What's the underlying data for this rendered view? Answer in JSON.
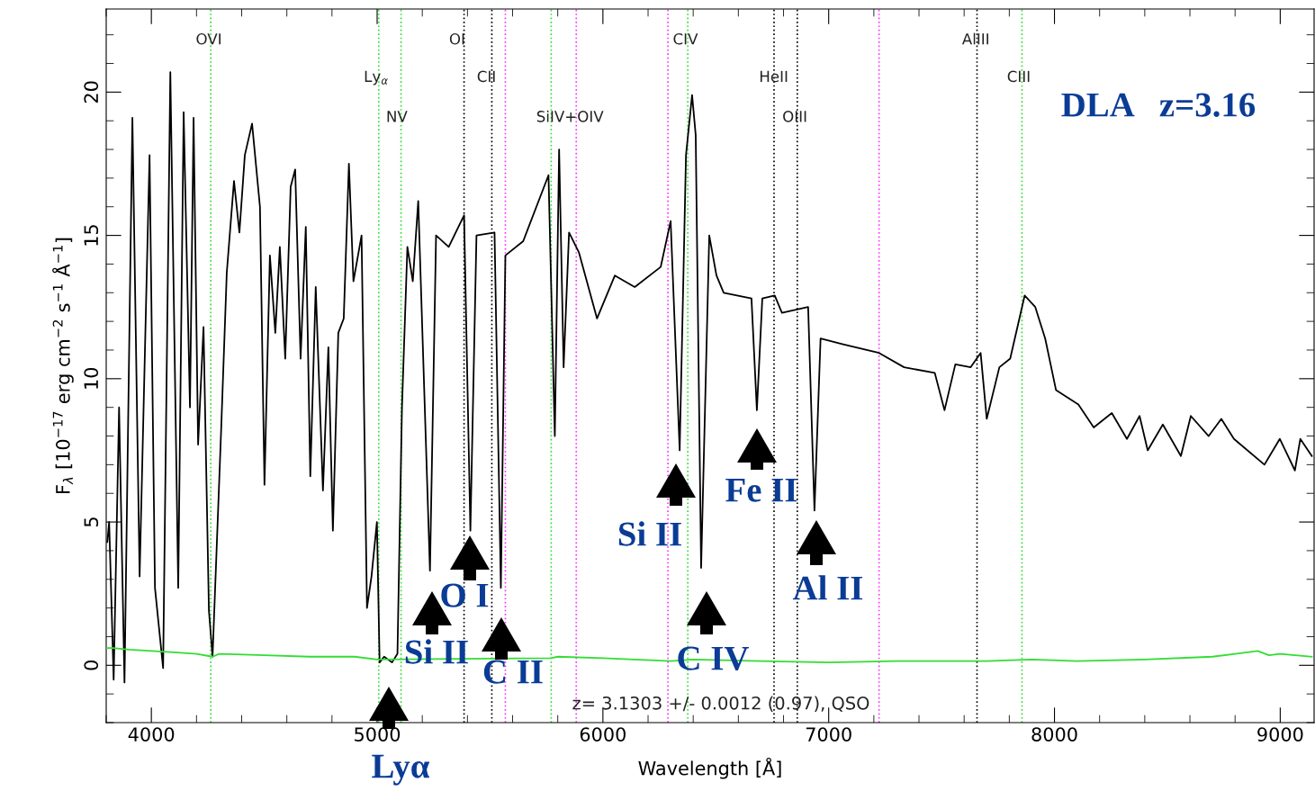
{
  "chart_data": {
    "type": "line",
    "xlabel": "Wavelength [Å]",
    "ylabel": "F$_{λ}$ [10$^{−17}$ erg cm$^{−2}$ s$^{−1}$ Å$^{−1}$]",
    "xlim": [
      3800,
      9150
    ],
    "ylim": [
      -2,
      22.9
    ],
    "xticks": [
      4000,
      5000,
      6000,
      7000,
      8000,
      9000
    ],
    "yticks": [
      0,
      5,
      10,
      15,
      20
    ],
    "series": [
      {
        "color": "#000000",
        "x": [
          3805,
          3813,
          3833,
          3857,
          3881,
          3916,
          3948,
          3992,
          4016,
          4052,
          4084,
          4119,
          4143,
          4171,
          4187,
          4207,
          4231,
          4255,
          4271,
          4310,
          4334,
          4366,
          4390,
          4414,
          4446,
          4481,
          4501,
          4525,
          4549,
          4569,
          4593,
          4617,
          4637,
          4661,
          4684,
          4704,
          4728,
          4760,
          4784,
          4804,
          4828,
          4852,
          4875,
          4895,
          4931,
          4955,
          4975,
          4999,
          5011,
          5031,
          5066,
          5090,
          5110,
          5134,
          5158,
          5182,
          5234,
          5261,
          5317,
          5385,
          5413,
          5440,
          5520,
          5548,
          5568,
          5647,
          5759,
          5787,
          5806,
          5826,
          5850,
          5894,
          5974,
          6053,
          6141,
          6256,
          6300,
          6340,
          6368,
          6395,
          6411,
          6435,
          6471,
          6503,
          6535,
          6658,
          6682,
          6706,
          6761,
          6793,
          6909,
          6937,
          6964,
          7064,
          7223,
          7334,
          7470,
          7513,
          7561,
          7629,
          7673,
          7700,
          7756,
          7804,
          7868,
          7915,
          7959,
          8007,
          8106,
          8174,
          8254,
          8321,
          8377,
          8413,
          8480,
          8560,
          8604,
          8683,
          8739,
          8795,
          8930,
          8998,
          9065,
          9089,
          9140
        ],
        "values": [
          4.3,
          5.0,
          -0.5,
          9.0,
          -0.6,
          19.1,
          3.1,
          17.8,
          2.7,
          -0.1,
          20.7,
          2.7,
          19.3,
          9.0,
          19.1,
          7.7,
          11.8,
          1.9,
          0.3,
          8.4,
          13.7,
          16.9,
          15.1,
          17.8,
          18.9,
          16.0,
          6.3,
          14.3,
          11.6,
          14.6,
          10.7,
          16.7,
          17.3,
          10.7,
          15.3,
          6.6,
          13.2,
          6.1,
          11.1,
          4.7,
          11.6,
          12.1,
          17.5,
          13.4,
          15.0,
          2.0,
          3.1,
          5.0,
          0.1,
          0.3,
          0.1,
          0.4,
          9.0,
          14.6,
          13.4,
          16.2,
          3.3,
          15.0,
          14.6,
          15.7,
          4.7,
          15.0,
          15.1,
          2.7,
          14.3,
          14.8,
          17.1,
          8.0,
          18.0,
          10.4,
          15.1,
          14.4,
          12.1,
          13.6,
          13.2,
          13.9,
          15.5,
          7.5,
          17.8,
          19.9,
          18.5,
          3.4,
          15.0,
          13.6,
          13.0,
          12.8,
          8.9,
          12.8,
          12.9,
          12.3,
          12.5,
          5.4,
          11.4,
          11.2,
          10.9,
          10.4,
          10.2,
          8.9,
          10.5,
          10.4,
          10.9,
          8.6,
          10.4,
          10.7,
          12.9,
          12.5,
          11.4,
          9.6,
          9.1,
          8.3,
          8.8,
          7.9,
          8.7,
          7.5,
          8.4,
          7.3,
          8.7,
          8.0,
          8.6,
          7.9,
          7.0,
          7.9,
          6.8,
          7.9,
          7.3
        ]
      },
      {
        "color": "#33dd33",
        "x": [
          3800,
          3830,
          3900,
          4000,
          4100,
          4200,
          4271,
          4300,
          4500,
          4700,
          4900,
          5000,
          5770,
          5800,
          6000,
          6300,
          6400,
          6700,
          7000,
          7300,
          7700,
          7900,
          8100,
          8400,
          8700,
          8800,
          8900,
          8950,
          9000,
          9140
        ],
        "values": [
          0.6,
          0.6,
          0.55,
          0.5,
          0.45,
          0.4,
          0.3,
          0.4,
          0.35,
          0.3,
          0.3,
          0.2,
          0.25,
          0.3,
          0.25,
          0.15,
          0.2,
          0.15,
          0.1,
          0.15,
          0.15,
          0.2,
          0.15,
          0.2,
          0.3,
          0.4,
          0.5,
          0.35,
          0.4,
          0.3
        ]
      }
    ],
    "ref_lines": [
      {
        "axis": "x",
        "value": 4263,
        "label": "OVI",
        "color": "#33dd33",
        "line_style": "dotted"
      },
      {
        "axis": "x",
        "value": 5007,
        "label": "Ly$_{α}$",
        "color": "#33dd33",
        "line_style": "dotted"
      },
      {
        "axis": "x",
        "value": 5106,
        "label": "NV",
        "color": "#33dd33",
        "line_style": "dotted"
      },
      {
        "axis": "x",
        "value": 5385,
        "label": "OI",
        "color": "#000000",
        "line_style": "dotted"
      },
      {
        "axis": "x",
        "value": 5508,
        "label": "CII",
        "color": "#000000",
        "line_style": "dotted"
      },
      {
        "axis": "x",
        "value": 5568,
        "label": null,
        "color": "#ff33ff",
        "line_style": "dotted"
      },
      {
        "axis": "x",
        "value": 5771,
        "label": "SiIV+OIV",
        "color": "#33dd33",
        "line_style": "dotted"
      },
      {
        "axis": "x",
        "value": 5882,
        "label": null,
        "color": "#ff33ff",
        "line_style": "dotted"
      },
      {
        "axis": "x",
        "value": 6288,
        "label": null,
        "color": "#ff33ff",
        "line_style": "dotted"
      },
      {
        "axis": "x",
        "value": 6376,
        "label": "CIV",
        "color": "#33dd33",
        "line_style": "dotted"
      },
      {
        "axis": "x",
        "value": 6758,
        "label": "HeII",
        "color": "#000000",
        "line_style": "dotted"
      },
      {
        "axis": "x",
        "value": 6861,
        "label": "OIII",
        "color": "#000000",
        "line_style": "dotted"
      },
      {
        "axis": "x",
        "value": 7223,
        "label": null,
        "color": "#ff33ff",
        "line_style": "dotted"
      },
      {
        "axis": "x",
        "value": 7657,
        "label": "AlIII",
        "color": "#000000",
        "line_style": "dotted"
      },
      {
        "axis": "x",
        "value": 7856,
        "label": "CIII",
        "color": "#33dd33",
        "line_style": "dotted"
      }
    ],
    "annotations": [
      "DLA   z=3.16",
      "z= 3.1303 +/- 0.0012 (0.97), QSO",
      "Lyα",
      "Si II",
      "O I",
      "C II",
      "Si II",
      "C IV",
      "Fe II",
      "Al II"
    ]
  }
}
